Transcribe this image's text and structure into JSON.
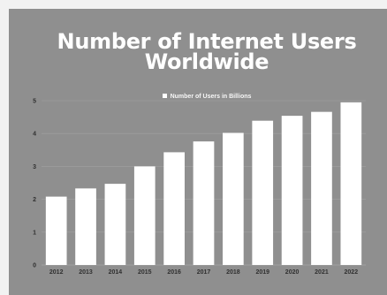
{
  "chart_data": {
    "type": "bar",
    "title": "Number of Internet Users Worldwide",
    "legend": [
      "Number of Users in Billions"
    ],
    "legend_position": "top-center",
    "categories": [
      "2012",
      "2013",
      "2014",
      "2015",
      "2016",
      "2017",
      "2018",
      "2019",
      "2020",
      "2021",
      "2022"
    ],
    "series": [
      {
        "name": "Number of Users in Billions",
        "values": [
          2.08,
          2.33,
          2.47,
          3.0,
          3.43,
          3.76,
          4.02,
          4.39,
          4.54,
          4.66,
          4.95
        ]
      }
    ],
    "y_ticks": [
      "0",
      "1",
      "2",
      "3",
      "4",
      "5"
    ],
    "ylim": [
      0,
      5
    ],
    "grid": true,
    "colors": {
      "background": "#8f8f8f",
      "bar": "#ffffff",
      "grid": "#9e9e9e",
      "text": "#ffffff"
    }
  }
}
